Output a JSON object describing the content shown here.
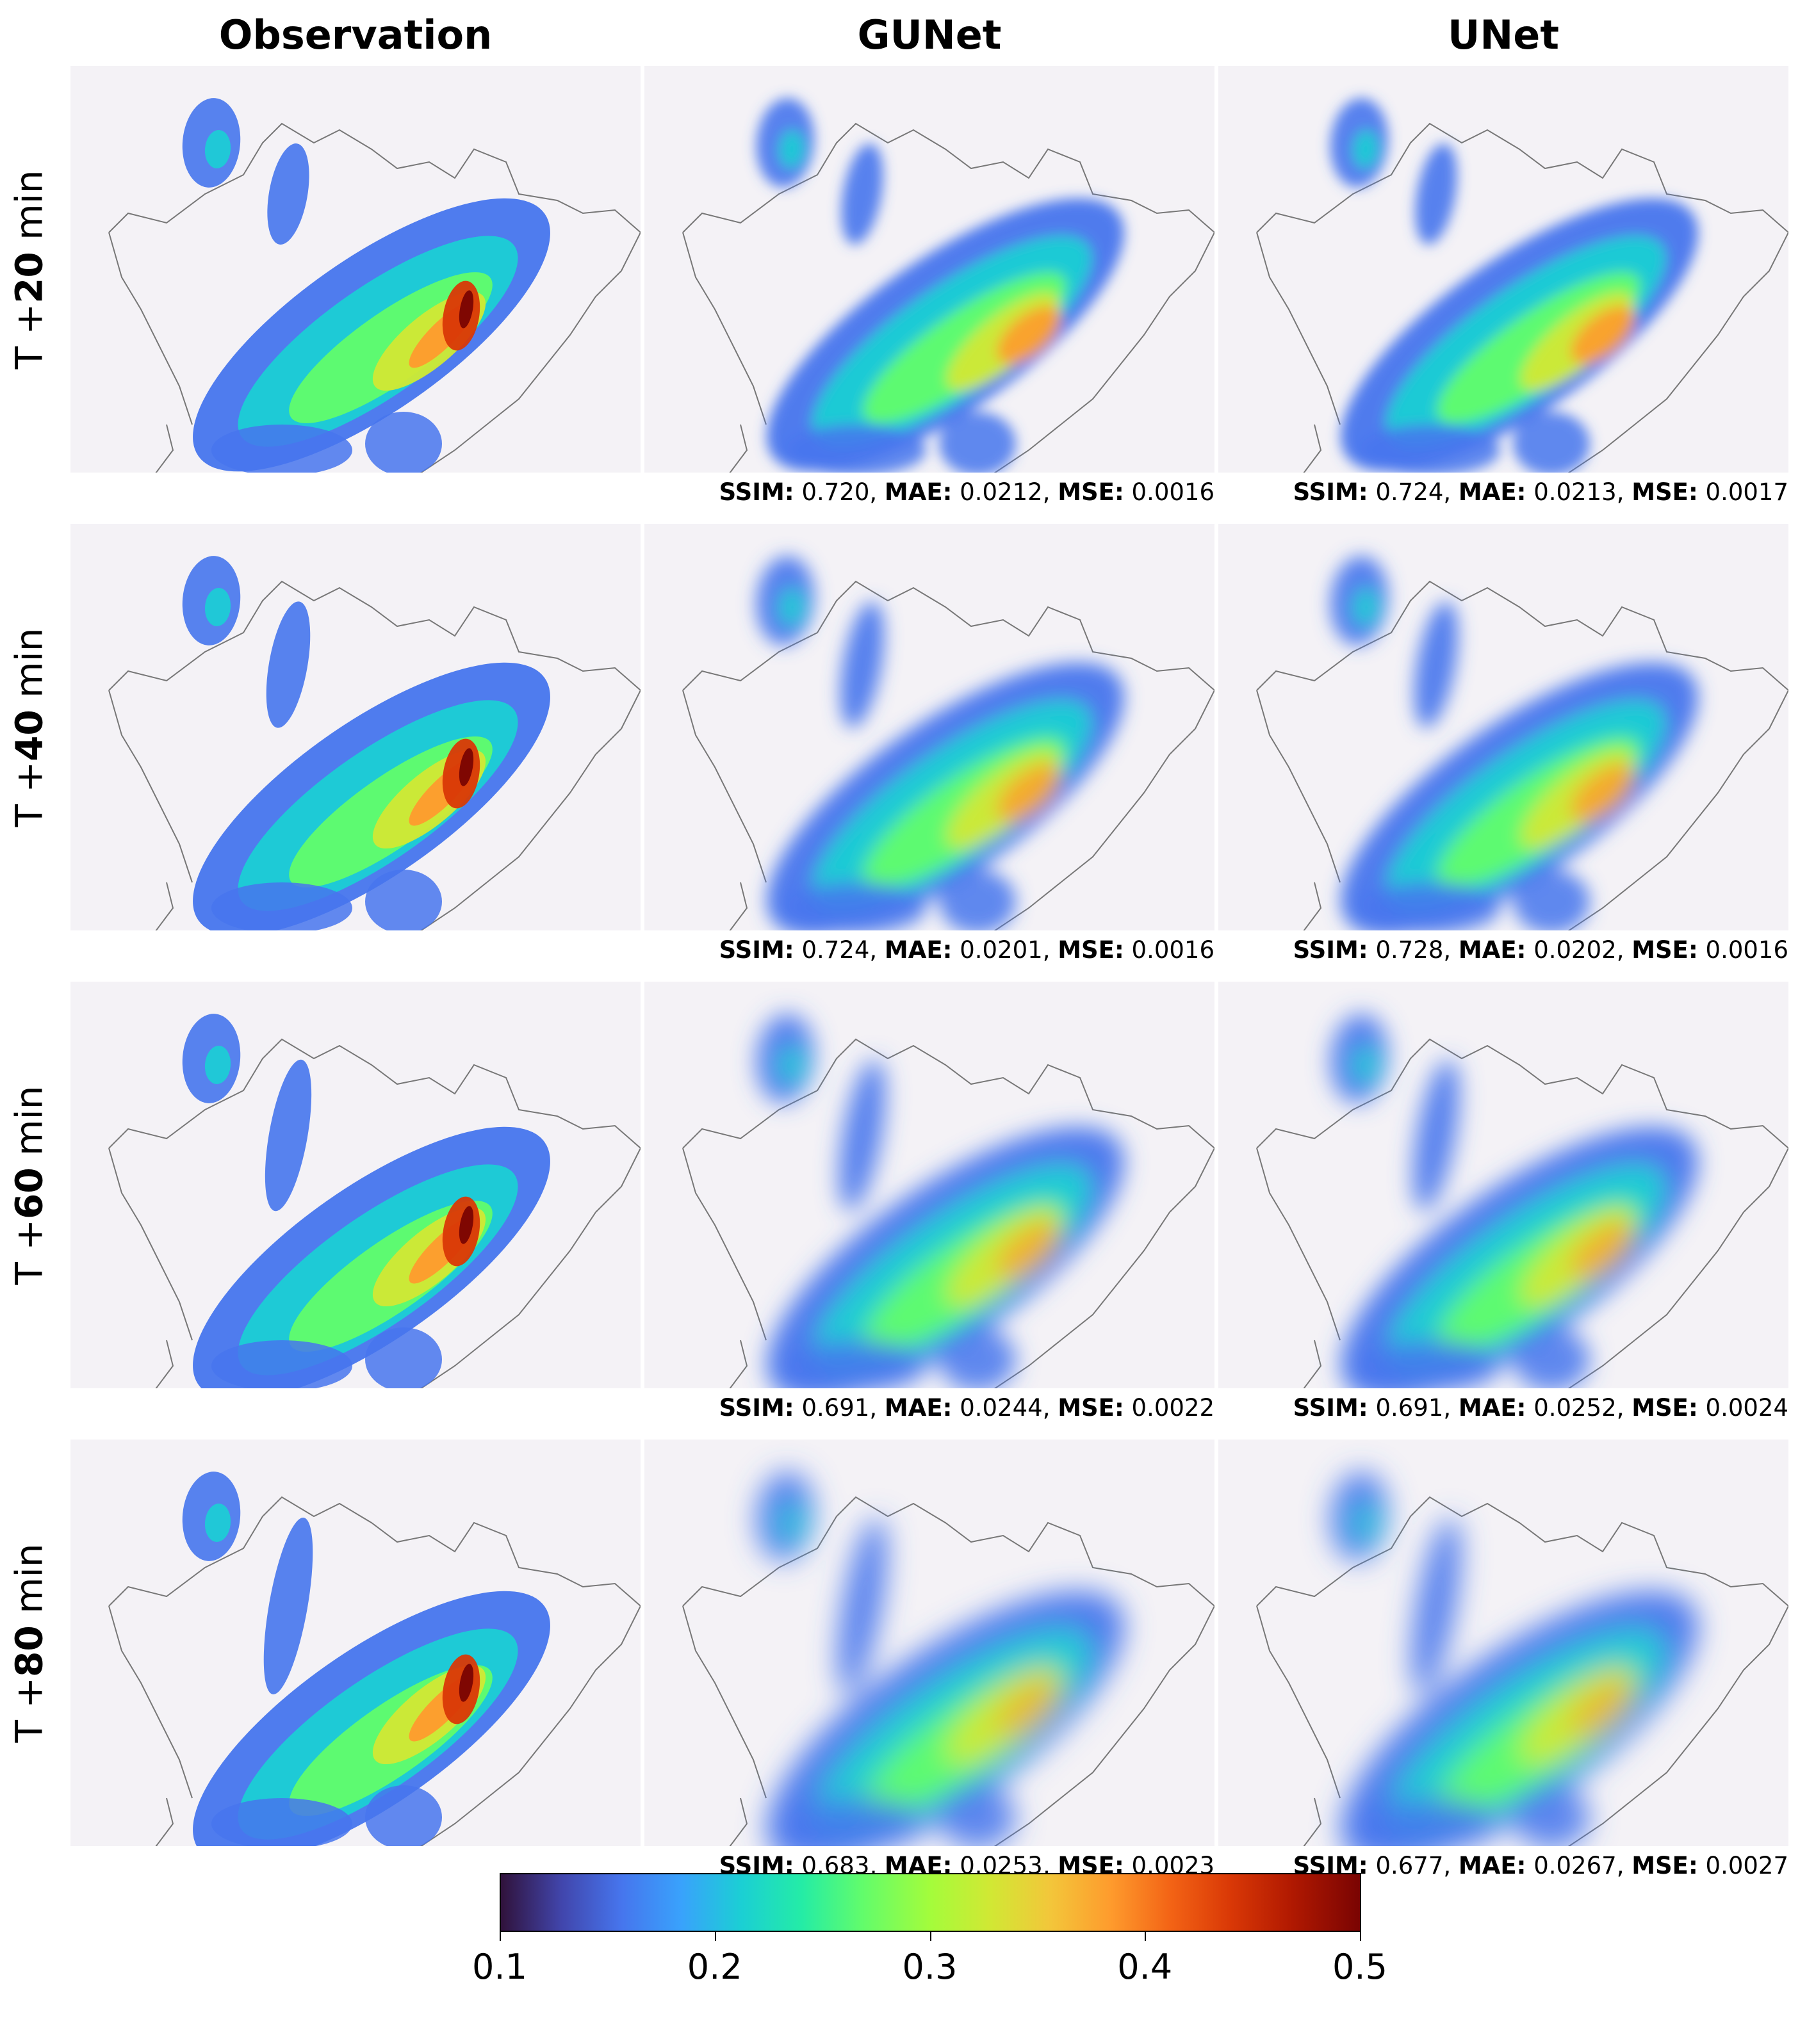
{
  "columns": [
    "Observation",
    "GUNet",
    "UNet"
  ],
  "rows": [
    {
      "prefix": "T +",
      "value": "20",
      "unit": " min",
      "gunet": {
        "ssim": "0.720",
        "mae": "0.0212",
        "mse": "0.0016"
      },
      "unet": {
        "ssim": "0.724",
        "mae": "0.0213",
        "mse": "0.0017"
      }
    },
    {
      "prefix": "T +",
      "value": "40",
      "unit": " min",
      "gunet": {
        "ssim": "0.724",
        "mae": "0.0201",
        "mse": "0.0016"
      },
      "unet": {
        "ssim": "0.728",
        "mae": "0.0202",
        "mse": "0.0016"
      }
    },
    {
      "prefix": "T +",
      "value": "60",
      "unit": " min",
      "gunet": {
        "ssim": "0.691",
        "mae": "0.0244",
        "mse": "0.0022"
      },
      "unet": {
        "ssim": "0.691",
        "mae": "0.0252",
        "mse": "0.0024"
      }
    },
    {
      "prefix": "T +",
      "value": "80",
      "unit": " min",
      "gunet": {
        "ssim": "0.683",
        "mae": "0.0253",
        "mse": "0.0023"
      },
      "unet": {
        "ssim": "0.677",
        "mae": "0.0267",
        "mse": "0.0027"
      }
    }
  ],
  "metric_labels": {
    "ssim": "SSIM",
    "mae": "MAE",
    "mse": "MSE",
    "sep": ":",
    "comma": ","
  },
  "colorbar": {
    "ticks": [
      "0.1",
      "0.2",
      "0.3",
      "0.4",
      "0.5"
    ],
    "colors": [
      "#30123b",
      "#4675ed",
      "#1bcfd4",
      "#61fc6c",
      "#d1e834",
      "#fe9b2d",
      "#d93806",
      "#7a0402"
    ]
  }
}
